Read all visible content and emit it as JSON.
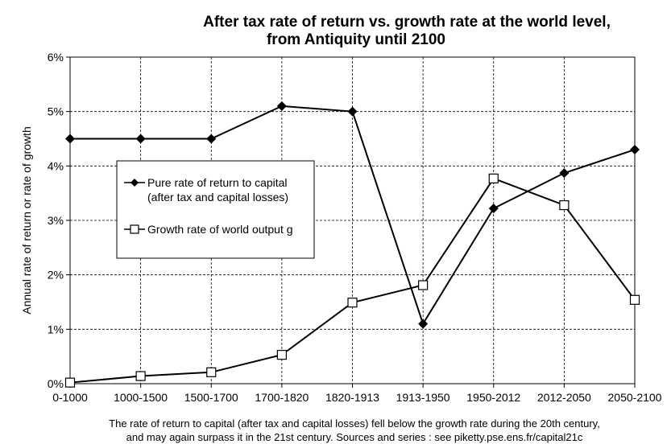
{
  "chart_data": {
    "type": "line",
    "title": "After tax rate of return vs. growth rate at the world level,",
    "subtitle": "from Antiquity until 2100",
    "ylabel": "Annual rate of return or rate of growth",
    "xlabel": "",
    "categories": [
      "0-1000",
      "1000-1500",
      "1500-1700",
      "1700-1820",
      "1820-1913",
      "1913-1950",
      "1950-2012",
      "2012-2050",
      "2050-2100"
    ],
    "ylim": [
      0,
      6
    ],
    "yticks": [
      "0%",
      "1%",
      "2%",
      "3%",
      "4%",
      "5%",
      "6%"
    ],
    "grid": true,
    "legend_placement": "middle-left",
    "series": [
      {
        "name_line1": "Pure rate of return to capital",
        "name_line2": "(after tax and capital losses)",
        "marker": "filled-diamond",
        "color": "#000000",
        "values": [
          4.5,
          4.5,
          4.5,
          5.1,
          5.0,
          1.1,
          3.22,
          3.87,
          4.3
        ]
      },
      {
        "name": "Growth rate of world output g",
        "marker": "open-square",
        "color": "#000000",
        "values": [
          0.02,
          0.14,
          0.21,
          0.53,
          1.49,
          1.81,
          3.77,
          3.28,
          1.54
        ]
      }
    ],
    "caption_line1": "The rate of return to capital (after tax and capital losses) fell below the growth rate during the 20th century,",
    "caption_line2": "and may again surpass it in the 21st century. Sources and series : see piketty.pse.ens.fr/capital21c"
  }
}
